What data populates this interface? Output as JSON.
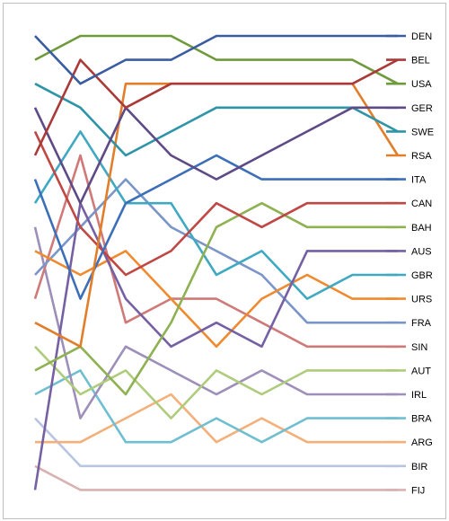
{
  "chart_data": {
    "type": "line",
    "title": "",
    "xlabel": "",
    "ylabel": "",
    "y_reversed": true,
    "ylim": [
      1,
      20
    ],
    "grid": false,
    "legend": "right",
    "x": [
      1,
      2,
      3,
      4,
      5,
      6,
      7,
      8,
      9
    ],
    "series": [
      {
        "name": "DEN",
        "color": "#3A5CA0",
        "values": [
          1,
          3,
          2,
          2,
          1,
          1,
          1,
          1,
          1
        ]
      },
      {
        "name": "BEL",
        "color": "#A93A38",
        "values": [
          6,
          2,
          4,
          3,
          3,
          3,
          3,
          3,
          2
        ]
      },
      {
        "name": "USA",
        "color": "#6F9A3C",
        "values": [
          2,
          1,
          1,
          1,
          2,
          2,
          2,
          2,
          3
        ]
      },
      {
        "name": "GER",
        "color": "#5E4A86",
        "values": [
          4,
          8,
          4,
          6,
          7,
          6,
          5,
          4,
          4
        ]
      },
      {
        "name": "SWE",
        "color": "#2E94A8",
        "values": [
          3,
          4,
          6,
          5,
          4,
          4,
          4,
          4,
          5
        ]
      },
      {
        "name": "RSA",
        "color": "#E27E2A",
        "values": [
          13,
          14,
          3,
          3,
          3,
          3,
          3,
          3,
          6
        ]
      },
      {
        "name": "ITA",
        "color": "#3C6FB8",
        "values": [
          7,
          12,
          8,
          7,
          6,
          7,
          7,
          7,
          7
        ]
      },
      {
        "name": "CAN",
        "color": "#BF4845",
        "values": [
          5,
          9,
          11,
          10,
          8,
          9,
          8,
          8,
          8
        ]
      },
      {
        "name": "BAH",
        "color": "#8EB152",
        "values": [
          15,
          14,
          16,
          13,
          9,
          8,
          9,
          9,
          9
        ]
      },
      {
        "name": "AUS",
        "color": "#7560A3",
        "values": [
          20,
          8,
          12,
          14,
          13,
          14,
          10,
          10,
          10
        ]
      },
      {
        "name": "GBR",
        "color": "#3FA9C2",
        "values": [
          8,
          5,
          8,
          8,
          11,
          10,
          12,
          11,
          11
        ]
      },
      {
        "name": "URS",
        "color": "#F08A2F",
        "values": [
          10,
          11,
          10,
          12,
          14,
          12,
          11,
          12,
          12
        ]
      },
      {
        "name": "FRA",
        "color": "#7A95C8",
        "values": [
          11,
          9,
          7,
          9,
          10,
          11,
          13,
          13,
          13
        ]
      },
      {
        "name": "SIN",
        "color": "#CF7A78",
        "values": [
          12,
          6,
          13,
          12,
          12,
          13,
          14,
          14,
          14
        ]
      },
      {
        "name": "AUT",
        "color": "#AFCB7C",
        "values": [
          14,
          16,
          15,
          17,
          15,
          16,
          15,
          15,
          15
        ]
      },
      {
        "name": "IRL",
        "color": "#9D8FB9",
        "values": [
          9,
          17,
          14,
          15,
          16,
          15,
          16,
          16,
          16
        ]
      },
      {
        "name": "BRA",
        "color": "#6FBFD0",
        "values": [
          16,
          15,
          18,
          18,
          17,
          18,
          17,
          17,
          17
        ]
      },
      {
        "name": "ARG",
        "color": "#F4B07A",
        "values": [
          18,
          18,
          17,
          16,
          18,
          17,
          18,
          18,
          18
        ]
      },
      {
        "name": "BIR",
        "color": "#B8C5E2",
        "values": [
          17,
          19,
          19,
          19,
          19,
          19,
          19,
          19,
          19
        ]
      },
      {
        "name": "FIJ",
        "color": "#D8B2B1",
        "values": [
          19,
          20,
          20,
          20,
          20,
          20,
          20,
          20,
          20
        ]
      }
    ]
  }
}
